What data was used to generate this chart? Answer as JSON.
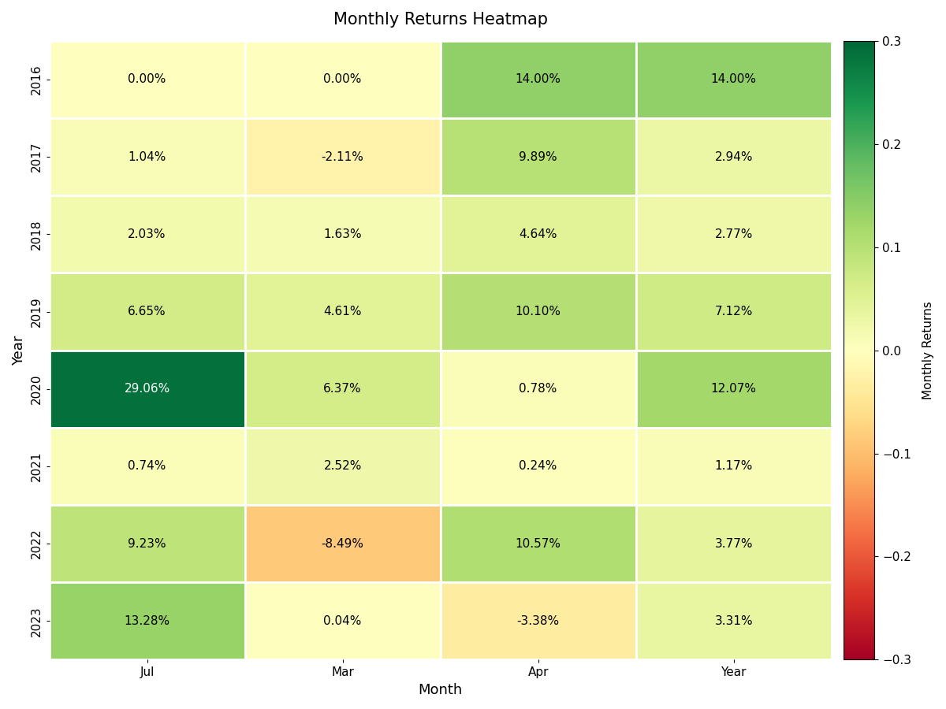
{
  "title": "Monthly Returns Heatmap",
  "xlabel": "Month",
  "ylabel": "Year",
  "colorbar_label": "Monthly Returns",
  "months": [
    "Jul",
    "Mar",
    "Apr",
    "Year"
  ],
  "years": [
    "2016",
    "2017",
    "2018",
    "2019",
    "2020",
    "2021",
    "2022",
    "2023"
  ],
  "values": [
    [
      0.0,
      0.0,
      0.14,
      0.14
    ],
    [
      0.0104,
      -0.0211,
      0.0989,
      0.0294
    ],
    [
      0.0203,
      0.0163,
      0.0464,
      0.0277
    ],
    [
      0.0665,
      0.0461,
      0.101,
      0.0712
    ],
    [
      0.2906,
      0.0637,
      0.0078,
      0.1207
    ],
    [
      0.0074,
      0.0252,
      0.0024,
      0.0117
    ],
    [
      0.0923,
      -0.0849,
      0.1057,
      0.0377
    ],
    [
      0.1328,
      0.0004,
      -0.0338,
      0.0331
    ]
  ],
  "labels": [
    [
      "0.00%",
      "0.00%",
      "14.00%",
      "14.00%"
    ],
    [
      "1.04%",
      "-2.11%",
      "9.89%",
      "2.94%"
    ],
    [
      "2.03%",
      "1.63%",
      "4.64%",
      "2.77%"
    ],
    [
      "6.65%",
      "4.61%",
      "10.10%",
      "7.12%"
    ],
    [
      "29.06%",
      "6.37%",
      "0.78%",
      "12.07%"
    ],
    [
      "0.74%",
      "2.52%",
      "0.24%",
      "1.17%"
    ],
    [
      "9.23%",
      "-8.49%",
      "10.57%",
      "3.77%"
    ],
    [
      "13.28%",
      "0.04%",
      "-3.38%",
      "3.31%"
    ]
  ],
  "vmin": -0.3,
  "vmax": 0.3,
  "cmap": "RdYlGn",
  "background_color": "#ffffff",
  "cell_linewidth": 2,
  "cell_linecolor": "white",
  "fontsize_title": 15,
  "fontsize_labels": 13,
  "fontsize_annot": 11,
  "fontsize_ticks": 11,
  "fontsize_colorbar": 11,
  "white_text_threshold": 0.15
}
